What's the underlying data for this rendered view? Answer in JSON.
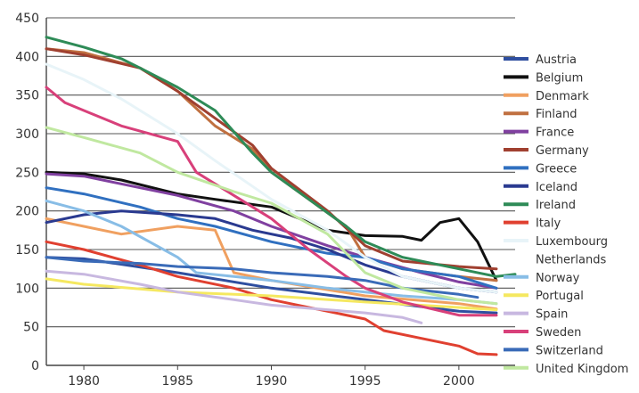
{
  "chart_data": {
    "type": "line",
    "title": "",
    "xlabel": "",
    "ylabel": "",
    "xlim": [
      1978,
      2003
    ],
    "ylim": [
      0,
      450
    ],
    "x_ticks": [
      1980,
      1985,
      1990,
      1995,
      2000
    ],
    "y_ticks": [
      0,
      50,
      100,
      150,
      200,
      250,
      300,
      350,
      400,
      450
    ],
    "grid": "horizontal",
    "legend": "right",
    "series": [
      {
        "name": "Austria",
        "color": "#2f4fa0",
        "points": [
          [
            1978,
            140
          ],
          [
            1980,
            138
          ],
          [
            1985,
            120
          ],
          [
            1990,
            100
          ],
          [
            1995,
            85
          ],
          [
            2000,
            70
          ],
          [
            2002,
            68
          ]
        ]
      },
      {
        "name": "Belgium",
        "color": "#111111",
        "points": [
          [
            1978,
            250
          ],
          [
            1980,
            248
          ],
          [
            1982,
            240
          ],
          [
            1985,
            222
          ],
          [
            1987,
            215
          ],
          [
            1990,
            205
          ],
          [
            1993,
            175
          ],
          [
            1995,
            168
          ],
          [
            1997,
            167
          ],
          [
            1998,
            162
          ],
          [
            1999,
            185
          ],
          [
            2000,
            190
          ],
          [
            2001,
            160
          ],
          [
            2002,
            110
          ]
        ]
      },
      {
        "name": "Denmark",
        "color": "#f0a060",
        "points": [
          [
            1978,
            190
          ],
          [
            1980,
            180
          ],
          [
            1982,
            170
          ],
          [
            1985,
            180
          ],
          [
            1987,
            175
          ],
          [
            1988,
            120
          ],
          [
            1990,
            110
          ],
          [
            1995,
            90
          ],
          [
            2000,
            80
          ],
          [
            2002,
            73
          ]
        ]
      },
      {
        "name": "Finland",
        "color": "#c07040",
        "points": [
          [
            1978,
            410
          ],
          [
            1980,
            405
          ],
          [
            1983,
            385
          ],
          [
            1985,
            355
          ],
          [
            1987,
            310
          ],
          [
            1989,
            280
          ],
          [
            1990,
            250
          ],
          [
            1992,
            215
          ],
          [
            1994,
            180
          ],
          [
            1995,
            140
          ],
          [
            1997,
            125
          ],
          [
            2000,
            115
          ],
          [
            2002,
            110
          ]
        ]
      },
      {
        "name": "France",
        "color": "#8040a0",
        "points": [
          [
            1978,
            248
          ],
          [
            1980,
            245
          ],
          [
            1983,
            230
          ],
          [
            1985,
            220
          ],
          [
            1988,
            200
          ],
          [
            1990,
            180
          ],
          [
            1993,
            155
          ],
          [
            1995,
            140
          ],
          [
            1998,
            120
          ],
          [
            2000,
            108
          ],
          [
            2002,
            100
          ]
        ]
      },
      {
        "name": "Germany",
        "color": "#a04030",
        "points": [
          [
            1978,
            410
          ],
          [
            1980,
            402
          ],
          [
            1983,
            385
          ],
          [
            1985,
            355
          ],
          [
            1987,
            320
          ],
          [
            1989,
            285
          ],
          [
            1990,
            255
          ],
          [
            1993,
            200
          ],
          [
            1995,
            155
          ],
          [
            1997,
            135
          ],
          [
            2000,
            128
          ],
          [
            2002,
            125
          ]
        ]
      },
      {
        "name": "Greece",
        "color": "#3070c0",
        "points": [
          [
            1978,
            230
          ],
          [
            1980,
            222
          ],
          [
            1983,
            205
          ],
          [
            1985,
            190
          ],
          [
            1987,
            180
          ],
          [
            1990,
            160
          ],
          [
            1993,
            145
          ],
          [
            1995,
            140
          ],
          [
            1997,
            125
          ],
          [
            2000,
            115
          ],
          [
            2002,
            100
          ]
        ]
      },
      {
        "name": "Iceland",
        "color": "#2a3a90",
        "points": [
          [
            1978,
            185
          ],
          [
            1980,
            195
          ],
          [
            1982,
            200
          ],
          [
            1985,
            195
          ],
          [
            1987,
            190
          ],
          [
            1989,
            175
          ],
          [
            1991,
            165
          ],
          [
            1993,
            150
          ],
          [
            1995,
            130
          ],
          [
            1997,
            115
          ],
          [
            2000,
            100
          ],
          [
            2002,
            95
          ]
        ]
      },
      {
        "name": "Ireland",
        "color": "#2e8b57",
        "points": [
          [
            1978,
            425
          ],
          [
            1980,
            412
          ],
          [
            1982,
            397
          ],
          [
            1983,
            385
          ],
          [
            1985,
            360
          ],
          [
            1987,
            330
          ],
          [
            1989,
            275
          ],
          [
            1990,
            250
          ],
          [
            1992,
            215
          ],
          [
            1994,
            180
          ],
          [
            1995,
            160
          ],
          [
            1997,
            140
          ],
          [
            2000,
            125
          ],
          [
            2002,
            115
          ],
          [
            2003,
            118
          ]
        ]
      },
      {
        "name": "Italy",
        "color": "#e04030",
        "points": [
          [
            1978,
            160
          ],
          [
            1980,
            150
          ],
          [
            1983,
            130
          ],
          [
            1985,
            115
          ],
          [
            1988,
            100
          ],
          [
            1990,
            85
          ],
          [
            1993,
            70
          ],
          [
            1995,
            60
          ],
          [
            1996,
            45
          ],
          [
            1998,
            35
          ],
          [
            2000,
            25
          ],
          [
            2001,
            15
          ],
          [
            2002,
            14
          ]
        ]
      },
      {
        "name": "Luxembourg",
        "color": "#e8f4f8",
        "points": [
          [
            1978,
            390
          ],
          [
            1980,
            370
          ],
          [
            1982,
            345
          ],
          [
            1985,
            300
          ],
          [
            1987,
            265
          ],
          [
            1990,
            215
          ],
          [
            1993,
            175
          ],
          [
            1995,
            140
          ],
          [
            1997,
            115
          ],
          [
            2000,
            100
          ],
          [
            2002,
            95
          ]
        ]
      },
      {
        "name": "Netherlands",
        "color": "#ffffff",
        "points": []
      },
      {
        "name": "Norway",
        "color": "#88bde6",
        "points": [
          [
            1978,
            213
          ],
          [
            1980,
            200
          ],
          [
            1982,
            180
          ],
          [
            1985,
            140
          ],
          [
            1986,
            120
          ],
          [
            1988,
            115
          ],
          [
            1990,
            110
          ],
          [
            1993,
            100
          ],
          [
            1995,
            95
          ],
          [
            1997,
            90
          ],
          [
            2000,
            85
          ],
          [
            2002,
            80
          ]
        ]
      },
      {
        "name": "Portugal",
        "color": "#f5e860",
        "points": [
          [
            1978,
            112
          ],
          [
            1980,
            105
          ],
          [
            1985,
            95
          ],
          [
            1990,
            90
          ],
          [
            1995,
            82
          ],
          [
            2000,
            75
          ],
          [
            2002,
            72
          ]
        ]
      },
      {
        "name": "Spain",
        "color": "#c8b8e0",
        "points": [
          [
            1978,
            122
          ],
          [
            1980,
            118
          ],
          [
            1983,
            105
          ],
          [
            1985,
            95
          ],
          [
            1988,
            85
          ],
          [
            1990,
            78
          ],
          [
            1993,
            72
          ],
          [
            1995,
            68
          ],
          [
            1997,
            62
          ],
          [
            1998,
            55
          ]
        ]
      },
      {
        "name": "Sweden",
        "color": "#d8407a",
        "points": [
          [
            1978,
            360
          ],
          [
            1979,
            340
          ],
          [
            1980,
            330
          ],
          [
            1982,
            310
          ],
          [
            1985,
            290
          ],
          [
            1986,
            250
          ],
          [
            1988,
            220
          ],
          [
            1990,
            190
          ],
          [
            1992,
            150
          ],
          [
            1994,
            115
          ],
          [
            1995,
            100
          ],
          [
            1997,
            82
          ],
          [
            2000,
            65
          ],
          [
            2002,
            65
          ]
        ]
      },
      {
        "name": "Switzerland",
        "color": "#3a6bb8",
        "points": [
          [
            1978,
            140
          ],
          [
            1980,
            135
          ],
          [
            1983,
            132
          ],
          [
            1985,
            128
          ],
          [
            1988,
            125
          ],
          [
            1990,
            120
          ],
          [
            1993,
            115
          ],
          [
            1995,
            110
          ],
          [
            1997,
            100
          ],
          [
            2000,
            92
          ],
          [
            2001,
            88
          ]
        ]
      },
      {
        "name": "United Kingdom",
        "color": "#c0e8a0",
        "points": [
          [
            1978,
            308
          ],
          [
            1980,
            295
          ],
          [
            1983,
            275
          ],
          [
            1985,
            250
          ],
          [
            1988,
            225
          ],
          [
            1990,
            210
          ],
          [
            1993,
            170
          ],
          [
            1995,
            120
          ],
          [
            1997,
            100
          ],
          [
            2000,
            85
          ],
          [
            2002,
            80
          ]
        ]
      }
    ]
  }
}
